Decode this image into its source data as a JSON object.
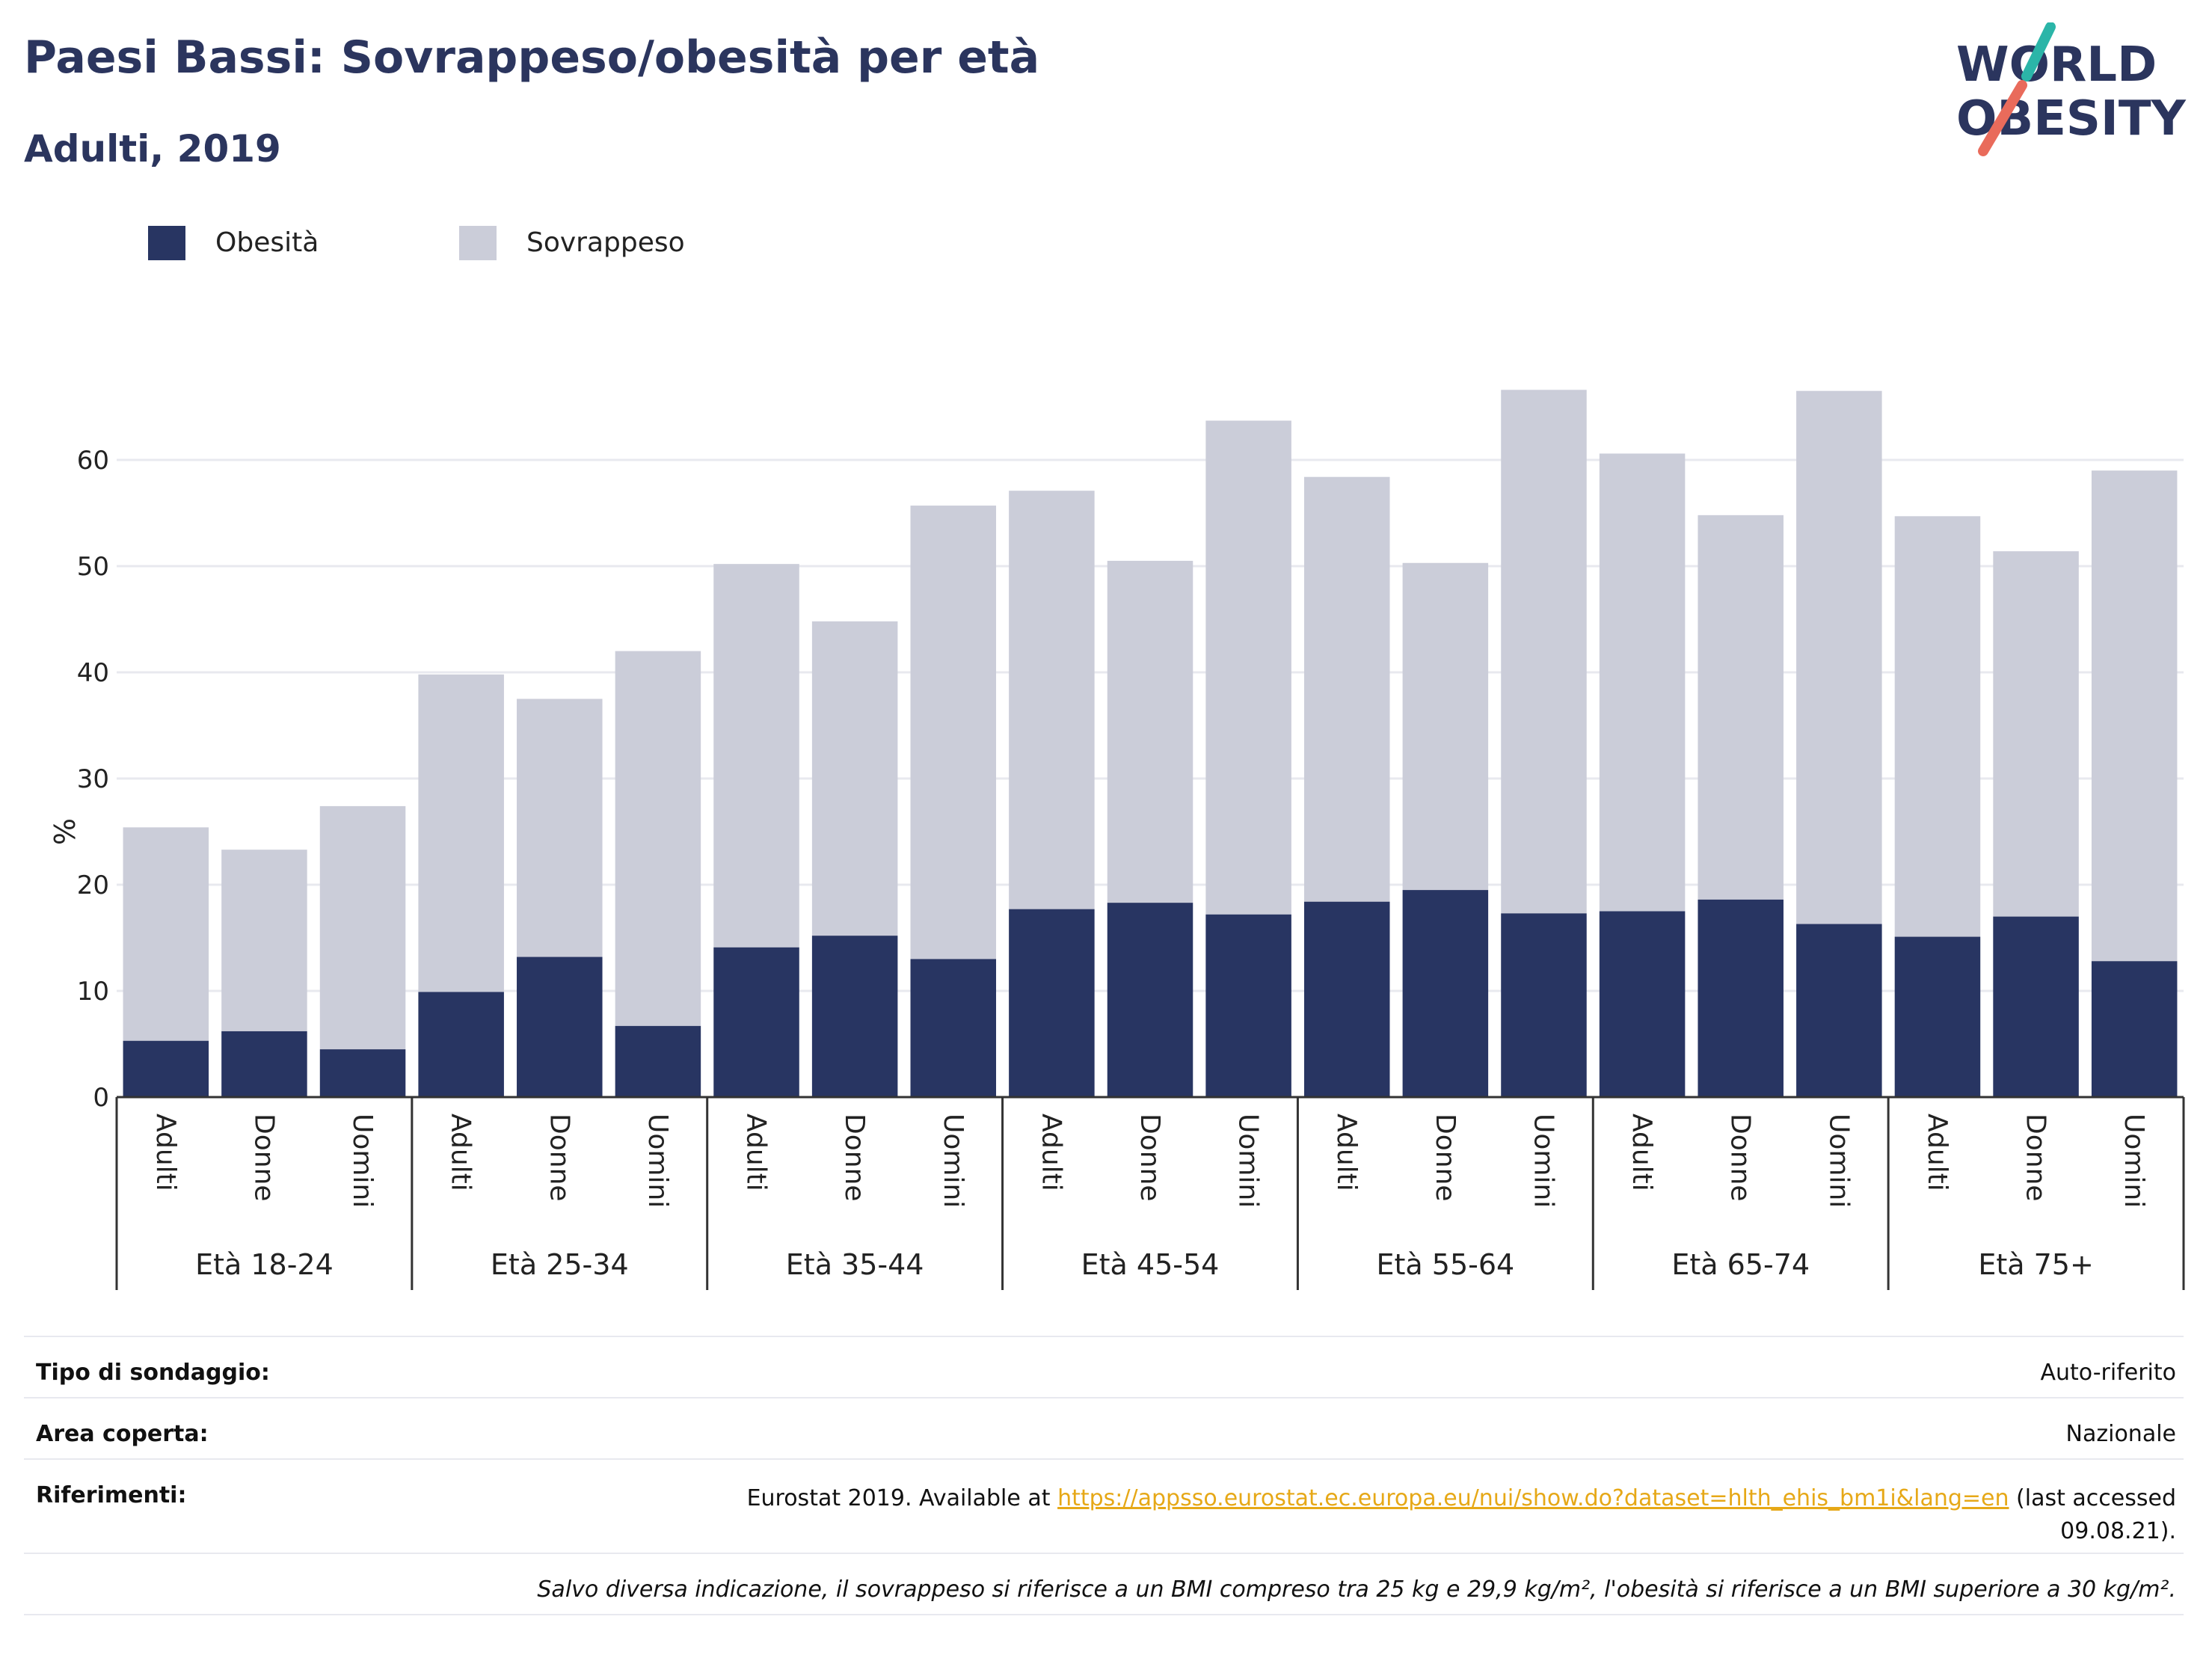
{
  "header": {
    "title": "Paesi Bassi: Sovrappeso/obesità per età",
    "subtitle": "Adulti, 2019"
  },
  "logo": {
    "line1": "WORLD",
    "line2": "OBESITY"
  },
  "colors": {
    "obesity": "#283562",
    "overweight": "#cbcdd9",
    "title": "#2b355e",
    "accent_teal": "#2bb5a8",
    "accent_coral": "#e96b5b",
    "link": "#e6a817"
  },
  "legend": [
    {
      "label": "Obesità",
      "color": "#283562"
    },
    {
      "label": "Sovrappeso",
      "color": "#cbcdd9"
    }
  ],
  "chart_data": {
    "type": "bar",
    "stacked": true,
    "ylabel": "%",
    "ylim": [
      0,
      70
    ],
    "yticks": [
      0,
      10,
      20,
      30,
      40,
      50,
      60
    ],
    "grid": true,
    "groups": [
      "Età 18-24",
      "Età 25-34",
      "Età 35-44",
      "Età 45-54",
      "Età 55-64",
      "Età 65-74",
      "Età 75+"
    ],
    "subcategories": [
      "Adulti",
      "Donne",
      "Uomini"
    ],
    "series": [
      {
        "name": "Obesità",
        "values": [
          5.3,
          6.2,
          4.5,
          9.9,
          13.2,
          6.7,
          14.1,
          15.2,
          13.0,
          17.7,
          18.3,
          17.2,
          18.4,
          19.5,
          17.3,
          17.5,
          18.6,
          16.3,
          15.1,
          17.0,
          12.8
        ]
      },
      {
        "name": "Sovrappeso",
        "values": [
          20.1,
          17.1,
          22.9,
          29.9,
          24.3,
          35.3,
          36.1,
          29.6,
          42.7,
          39.4,
          32.2,
          46.5,
          40.0,
          30.8,
          49.3,
          43.1,
          36.2,
          50.2,
          39.6,
          34.4,
          46.2
        ]
      }
    ]
  },
  "info_table": {
    "survey_type_label": "Tipo di sondaggio:",
    "survey_type_value": "Auto-riferito",
    "coverage_label": "Area coperta:",
    "coverage_value": "Nazionale",
    "references_label": "Riferimenti:",
    "references_prefix": "Eurostat 2019. Available at",
    "references_link": "https://appsso.eurostat.ec.europa.eu/nui/show.do?dataset=hlth_ehis_bm1i&lang=en",
    "references_suffix": "(last accessed 09.08.21).",
    "footnote": "Salvo diversa indicazione, il sovrappeso si riferisce a un BMI compreso tra 25 kg e 29,9 kg/m², l'obesità si riferisce a un BMI superiore a 30 kg/m²."
  }
}
